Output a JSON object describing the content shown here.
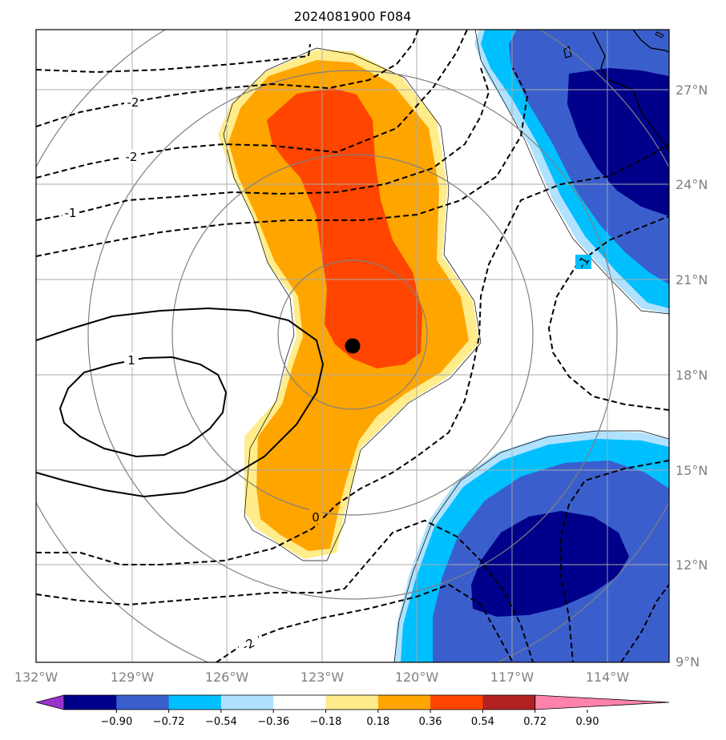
{
  "title": "2024081900 F084",
  "map": {
    "lon_labels": [
      "132°W",
      "129°W",
      "126°W",
      "123°W",
      "120°W",
      "117°W",
      "114°W"
    ],
    "lat_labels": [
      "9°N",
      "12°N",
      "15°N",
      "18°N",
      "21°N",
      "24°N",
      "27°N"
    ],
    "lon_range": [
      -132,
      -112
    ],
    "lat_range": [
      9,
      29
    ],
    "center_marker": {
      "lon": -122.0,
      "lat": 19.0
    },
    "range_ring_radii_deg": [
      2.4,
      5.6,
      8.3,
      11.3
    ]
  },
  "contours": {
    "labels": [
      "-2",
      "-2",
      "-1",
      "-1",
      "1",
      "0",
      "-2"
    ]
  },
  "colorbar": {
    "tick_labels": [
      "−0.90",
      "−0.72",
      "−0.54",
      "−0.36",
      "−0.18",
      "0.18",
      "0.36",
      "0.54",
      "0.72",
      "0.90"
    ],
    "colors": [
      "#9932cc",
      "#00008b",
      "#3a5fcd",
      "#00bfff",
      "#b0e2ff",
      "#ffffff",
      "#ffec8b",
      "#ffa500",
      "#ff4500",
      "#b22222",
      "#ff82ab"
    ]
  },
  "fill_colors": {
    "warm_light": "#ffec8b",
    "warm_mid": "#ffa500",
    "warm_high": "#ff4500",
    "cool_light": "#b0e2ff",
    "cool_mid1": "#00bfff",
    "cool_mid2": "#3a5fcd",
    "cool_high": "#00008b"
  }
}
